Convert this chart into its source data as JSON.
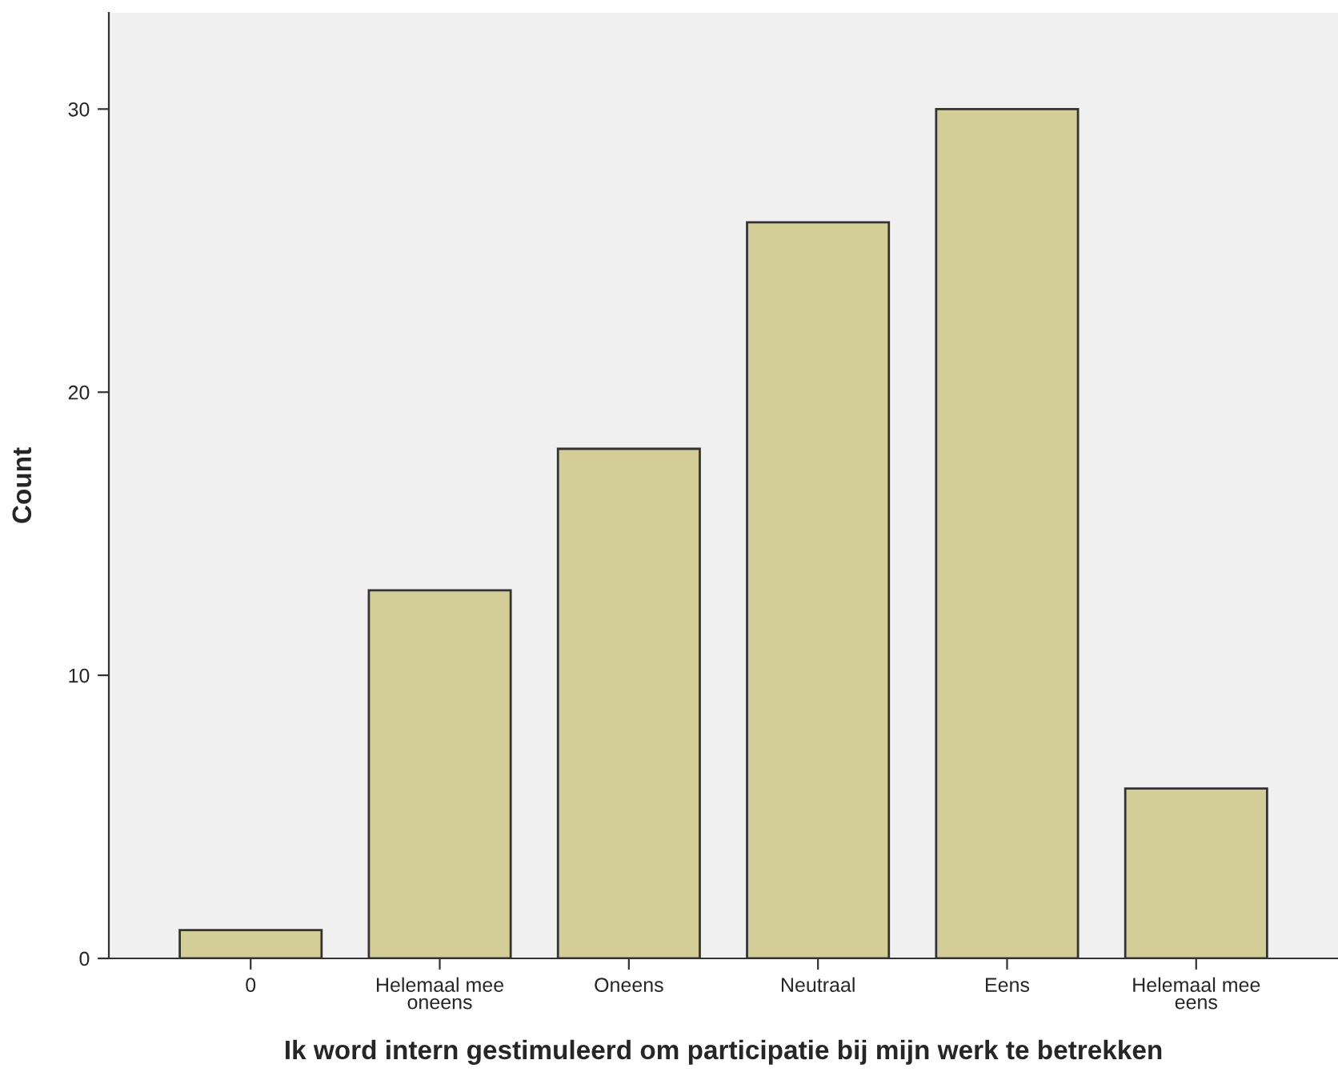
{
  "chart_data": {
    "type": "bar",
    "xlabel": "Ik word intern gestimuleerd om participatie bij mijn werk te betrekken",
    "ylabel": "Count",
    "categories": [
      "0",
      "Helemaal mee\noneens",
      "Oneens",
      "Neutraal",
      "Eens",
      "Helemaal mee\neens"
    ],
    "values": [
      1,
      13,
      18,
      26,
      30,
      6
    ],
    "color": "#d3ce97",
    "ylim": [
      0,
      33.4
    ],
    "yticks": [
      0,
      10,
      20,
      30
    ],
    "grid": false,
    "legend": false
  }
}
